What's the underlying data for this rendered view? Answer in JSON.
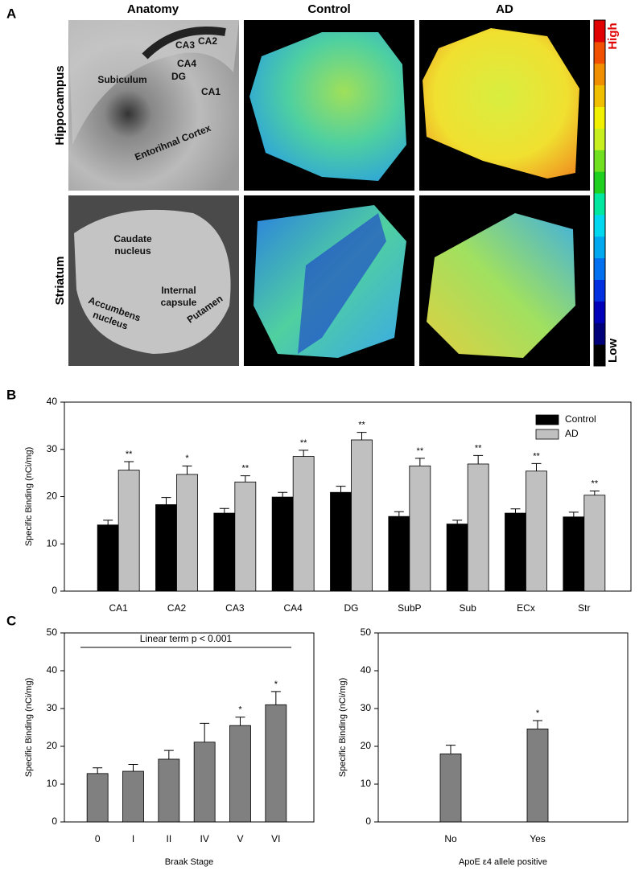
{
  "panel_a": {
    "label": "A",
    "columns": [
      "Anatomy",
      "Control",
      "AD"
    ],
    "rows": [
      "Hippocampus",
      "Striatum"
    ],
    "colorbar": {
      "high": "High",
      "low": "Low"
    },
    "hippocampus_labels": [
      "CA3",
      "CA2",
      "CA4",
      "DG",
      "Subiculum",
      "CA1",
      "Entorihnal Cortex"
    ],
    "striatum_labels": [
      {
        "lines": [
          "Caudate",
          "nucleus"
        ]
      },
      {
        "lines": [
          "Internal",
          "capsule"
        ]
      },
      {
        "lines": [
          "Accumbens",
          "nucleus"
        ]
      },
      {
        "lines": [
          "Putamen"
        ]
      }
    ]
  },
  "chart_data": [
    {
      "type": "bar",
      "label": "B",
      "ylabel": "Specific Binding (nCi/mg)",
      "categories": [
        "CA1",
        "CA2",
        "CA3",
        "CA4",
        "DG",
        "SubP",
        "Sub",
        "ECx",
        "Str"
      ],
      "series": [
        {
          "name": "Control",
          "color": "#000000",
          "values": [
            14,
            18.3,
            16.5,
            19.9,
            20.9,
            15.8,
            14.2,
            16.5,
            15.7
          ],
          "errors": [
            1,
            1.5,
            1,
            1,
            1.3,
            1,
            0.8,
            0.9,
            1
          ]
        },
        {
          "name": "AD",
          "color": "#c0c0c0",
          "values": [
            25.6,
            24.7,
            23.1,
            28.5,
            32,
            26.5,
            26.9,
            25.4,
            20.3
          ],
          "errors": [
            1.8,
            1.8,
            1.3,
            1.3,
            1.6,
            1.6,
            1.8,
            1.6,
            0.9
          ],
          "stars": [
            "**",
            "*",
            "**",
            "**",
            "**",
            "**",
            "**",
            "**",
            "**"
          ]
        }
      ],
      "ylim": [
        0,
        40
      ],
      "yticks": [
        0,
        10,
        20,
        30,
        40
      ],
      "legend": "top-right"
    },
    {
      "type": "bar",
      "label": "C",
      "ylabel": "Specific Binding (nCi/mg)",
      "xlabel": "Braak Stage",
      "annotation": "Linear term p < 0.001",
      "categories": [
        "0",
        "I",
        "II",
        "IV",
        "V",
        "VI"
      ],
      "series": [
        {
          "color": "#808080",
          "values": [
            12.8,
            13.4,
            16.6,
            21.1,
            25.5,
            31
          ],
          "errors": [
            1.5,
            1.8,
            2.3,
            5,
            2.2,
            3.5
          ],
          "stars": [
            null,
            null,
            null,
            null,
            "*",
            "*"
          ]
        }
      ],
      "ylim": [
        0,
        50
      ],
      "yticks": [
        0,
        10,
        20,
        30,
        40,
        50
      ]
    },
    {
      "type": "bar",
      "ylabel": "Specific Binding (nCi/mg)",
      "xlabel": "ApoE ε4 allele positive",
      "categories": [
        "No",
        "Yes"
      ],
      "series": [
        {
          "color": "#808080",
          "values": [
            18,
            24.6
          ],
          "errors": [
            2.3,
            2.2
          ],
          "stars": [
            null,
            "*"
          ]
        }
      ],
      "ylim": [
        0,
        50
      ],
      "yticks": [
        0,
        10,
        20,
        30,
        40,
        50
      ]
    }
  ]
}
